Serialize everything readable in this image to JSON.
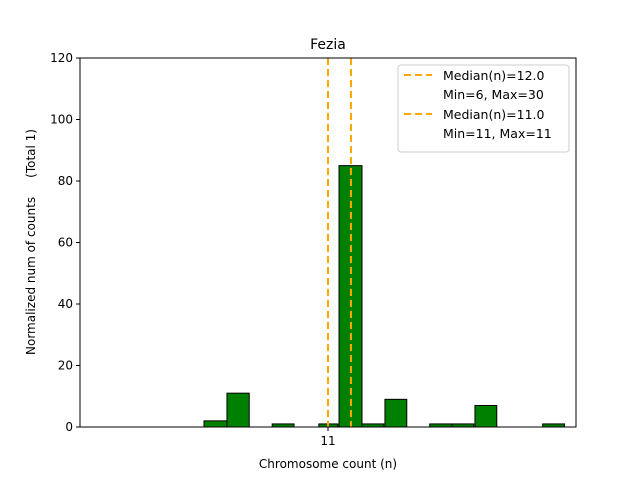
{
  "chart_data": {
    "type": "bar",
    "title": "Fezia",
    "xlabel": "Chromosome count (n)",
    "ylabel": "Normalized num of counts     (Total 1)",
    "ylim": [
      0,
      120
    ],
    "xlim": [
      0.2,
      21.8
    ],
    "yticks": [
      "0",
      "20",
      "40",
      "60",
      "80",
      "100",
      "120"
    ],
    "ytick_values": [
      0,
      20,
      40,
      60,
      80,
      100,
      120
    ],
    "xticks": [
      "11"
    ],
    "xtick_values": [
      11
    ],
    "bar_color": "#008000",
    "bins": [
      {
        "left": 5.6,
        "right": 6.6,
        "value": 2
      },
      {
        "left": 6.6,
        "right": 7.57,
        "value": 11
      },
      {
        "left": 8.57,
        "right": 9.52,
        "value": 1
      },
      {
        "left": 10.6,
        "right": 11.43,
        "value": 1
      },
      {
        "left": 11.48,
        "right": 12.48,
        "value": 85
      },
      {
        "left": 12.48,
        "right": 13.43,
        "value": 1
      },
      {
        "left": 13.48,
        "right": 14.43,
        "value": 9
      },
      {
        "left": 15.43,
        "right": 16.4,
        "value": 1
      },
      {
        "left": 16.4,
        "right": 17.35,
        "value": 1
      },
      {
        "left": 17.4,
        "right": 18.35,
        "value": 7
      },
      {
        "left": 20.35,
        "right": 21.3,
        "value": 1
      }
    ],
    "medians": [
      {
        "value": 12.0,
        "color": "#FFA500",
        "label": "Median(n)=12.0",
        "sublabel": "Min=6, Max=30"
      },
      {
        "value": 11.0,
        "color": "#FFA500",
        "label": "Median(n)=11.0",
        "sublabel": "Min=11, Max=11"
      }
    ],
    "legend_position": "top-right",
    "grid": false
  }
}
